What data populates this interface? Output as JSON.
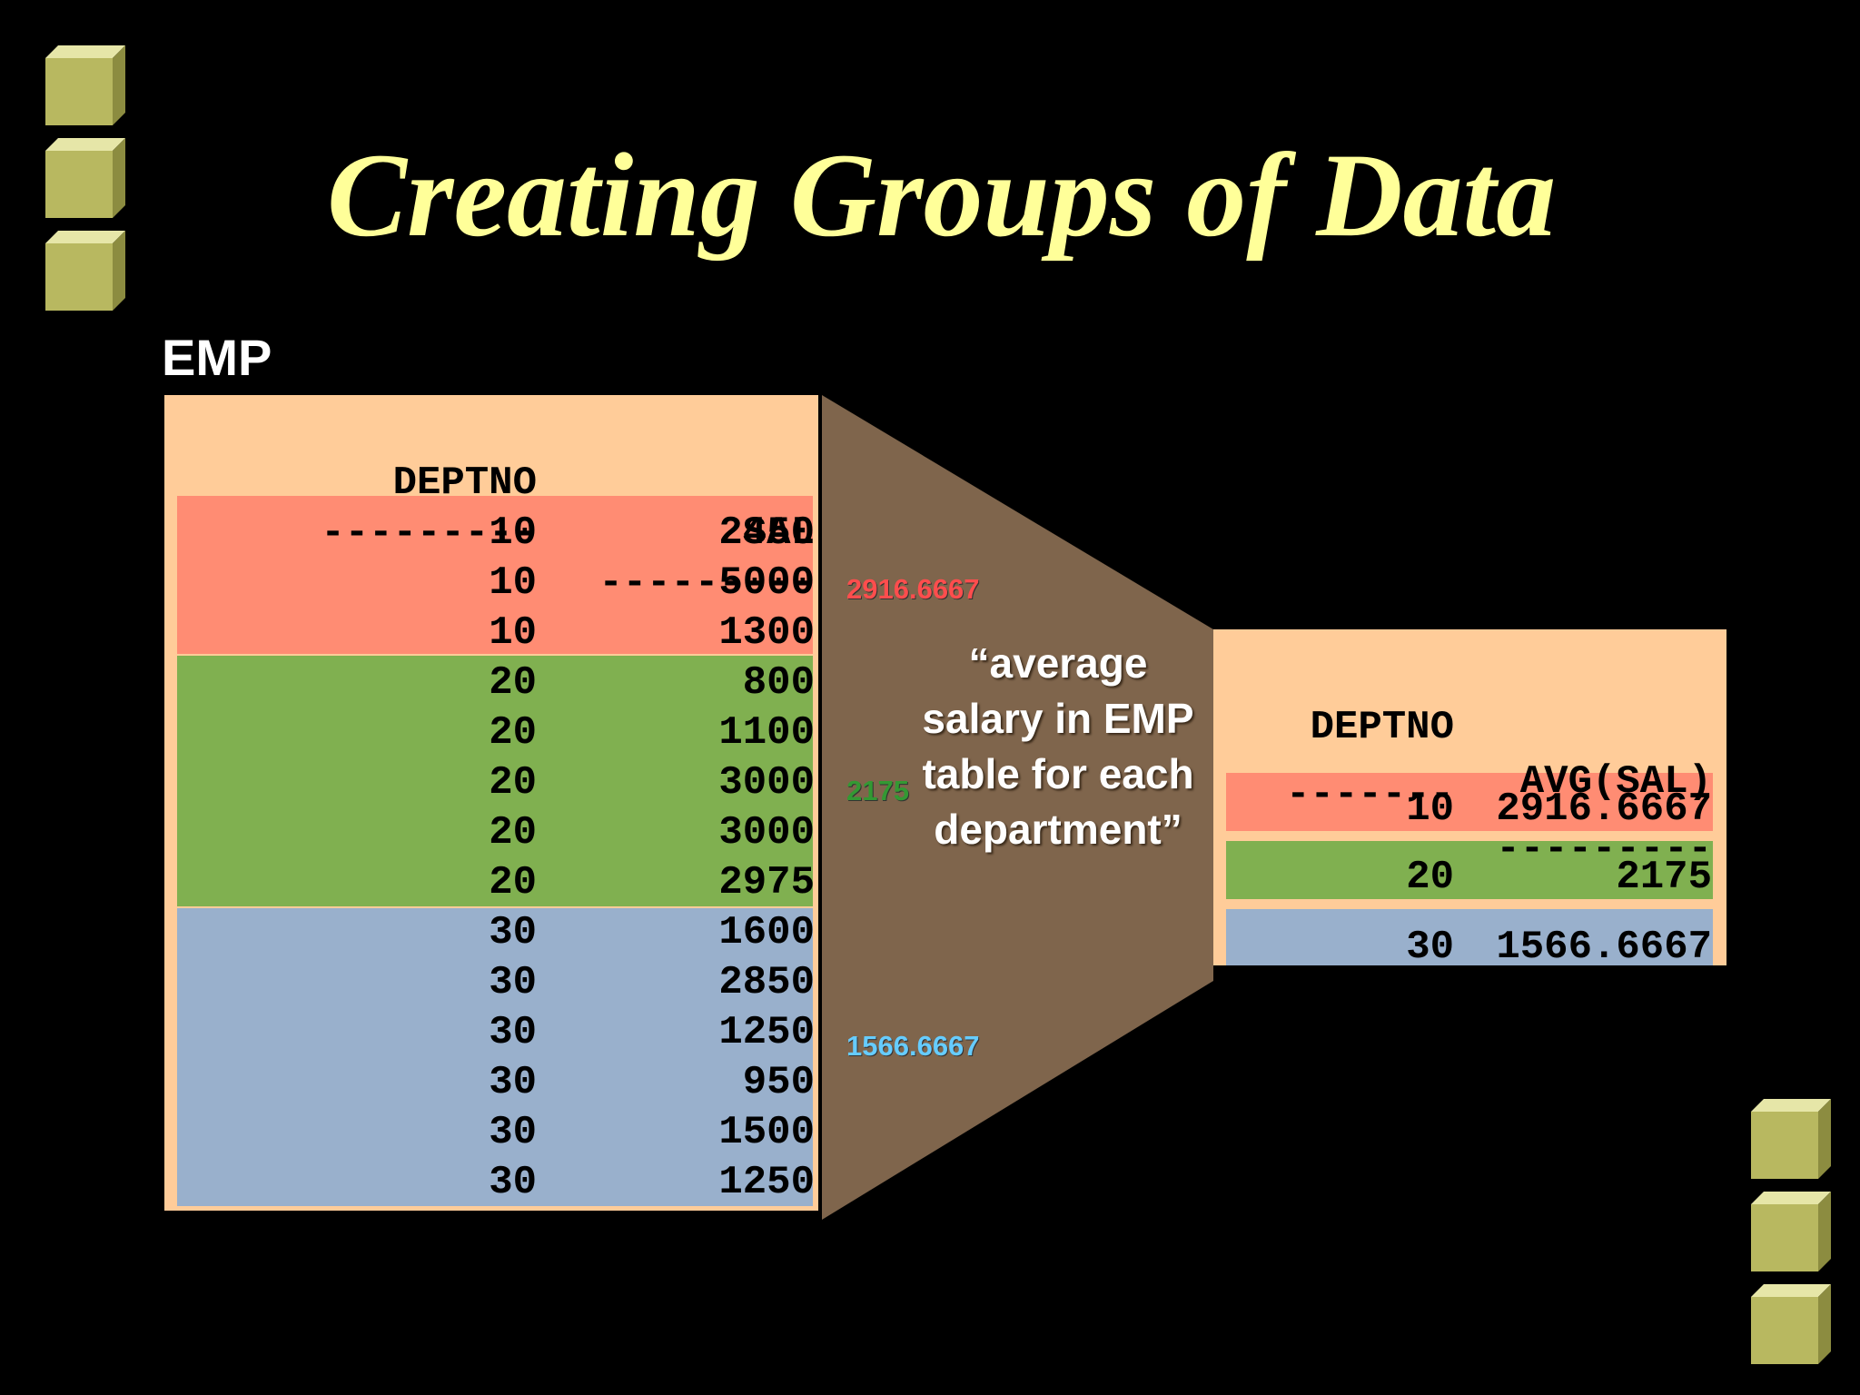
{
  "slide": {
    "title": "Creating Groups of Data",
    "title_color": "#ffff99",
    "background": "#000000"
  },
  "emp": {
    "label": "EMP",
    "headers": {
      "deptno": "DEPTNO",
      "sal": "SAL"
    },
    "dashes": {
      "deptno": "---------",
      "sal": "---------"
    },
    "rows": [
      {
        "deptno": "10",
        "sal": "2450"
      },
      {
        "deptno": "10",
        "sal": "5000"
      },
      {
        "deptno": "10",
        "sal": "1300"
      },
      {
        "deptno": "20",
        "sal": "800"
      },
      {
        "deptno": "20",
        "sal": "1100"
      },
      {
        "deptno": "20",
        "sal": "3000"
      },
      {
        "deptno": "20",
        "sal": "3000"
      },
      {
        "deptno": "20",
        "sal": "2975"
      },
      {
        "deptno": "30",
        "sal": "1600"
      },
      {
        "deptno": "30",
        "sal": "2850"
      },
      {
        "deptno": "30",
        "sal": "1250"
      },
      {
        "deptno": "30",
        "sal": "950"
      },
      {
        "deptno": "30",
        "sal": "1500"
      },
      {
        "deptno": "30",
        "sal": "1250"
      }
    ]
  },
  "groups": [
    {
      "deptno": "10",
      "avg": "2916.6667",
      "band_color": "#ff8c73",
      "label_color": "#ff4d4d"
    },
    {
      "deptno": "20",
      "avg": "2175",
      "band_color": "#80b050",
      "label_color": "#339933"
    },
    {
      "deptno": "30",
      "avg": "1566.6667",
      "band_color": "#99b0cc",
      "label_color": "#66ccff"
    }
  ],
  "funnel": {
    "color": "#7f654c",
    "quote": "“average salary in EMP table for each department”"
  },
  "result": {
    "headers": {
      "deptno": "DEPTNO",
      "avg": "AVG(SAL)"
    },
    "dashes": {
      "deptno": "-------",
      "avg": "---------"
    },
    "rows": [
      {
        "deptno": "10",
        "avg": "2916.6667"
      },
      {
        "deptno": "20",
        "avg": "2175"
      },
      {
        "deptno": "30",
        "avg": "1566.6667"
      }
    ]
  }
}
